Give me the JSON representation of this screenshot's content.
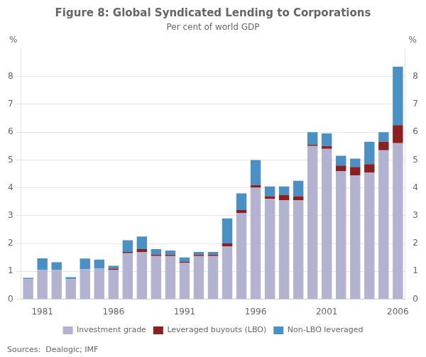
{
  "chart_data": {
    "type": "bar",
    "title": "Figure 8: Global Syndicated Lending to Corporations",
    "subtitle": "Per cent of world GDP",
    "ylabel": "%",
    "y2label": "%",
    "source": "Sources:  Dealogic; IMF",
    "categories": [
      null,
      "1981",
      null,
      null,
      null,
      null,
      "1986",
      null,
      null,
      null,
      null,
      "1991",
      null,
      null,
      null,
      null,
      "1996",
      null,
      null,
      null,
      null,
      "2001",
      null,
      null,
      null,
      null,
      "2006"
    ],
    "series": [
      {
        "name": "Investment grade",
        "color": "#b3b3d1",
        "values": [
          0.72,
          1.05,
          1.05,
          0.72,
          1.08,
          1.1,
          1.05,
          1.65,
          1.7,
          1.55,
          1.55,
          1.3,
          1.55,
          1.55,
          1.9,
          3.1,
          4.0,
          3.6,
          3.55,
          3.55,
          5.5,
          5.4,
          4.6,
          4.45,
          4.55,
          5.35,
          5.6
        ]
      },
      {
        "name": "Leveraged buyouts (LBO)",
        "color": "#8b2020",
        "values": [
          0.0,
          0.0,
          0.0,
          0.0,
          0.0,
          0.0,
          0.05,
          0.05,
          0.1,
          0.05,
          0.05,
          0.05,
          0.05,
          0.05,
          0.1,
          0.1,
          0.1,
          0.1,
          0.2,
          0.15,
          0.05,
          0.1,
          0.2,
          0.3,
          0.3,
          0.3,
          0.65
        ]
      },
      {
        "name": "Non-LBO leveraged",
        "color": "#4a90c4",
        "values": [
          0.05,
          0.42,
          0.28,
          0.07,
          0.38,
          0.32,
          0.1,
          0.42,
          0.45,
          0.2,
          0.15,
          0.15,
          0.1,
          0.1,
          0.9,
          0.6,
          0.9,
          0.35,
          0.3,
          0.55,
          0.45,
          0.45,
          0.35,
          0.3,
          0.8,
          0.35,
          2.1
        ]
      }
    ],
    "stacked": true,
    "ylim": [
      0,
      9
    ],
    "yticks": [
      0,
      1,
      2,
      3,
      4,
      5,
      6,
      7,
      8
    ],
    "y2lim": [
      0,
      9
    ],
    "y2ticks": [
      0,
      1,
      2,
      3,
      4,
      5,
      6,
      7,
      8
    ],
    "grid": true,
    "legend": "bottom"
  }
}
